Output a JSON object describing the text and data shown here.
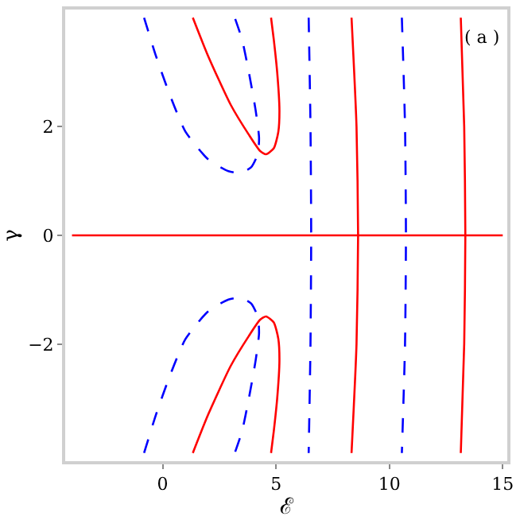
{
  "chart_data": {
    "type": "line",
    "xlabel": "ℰ",
    "ylabel": "γ",
    "annotations": [
      "( a )"
    ],
    "xlim": [
      -4.3,
      15.2
    ],
    "ylim": [
      -4.15,
      4.15
    ],
    "xticks": [
      0,
      5,
      10,
      15
    ],
    "yticks": [
      -2,
      0,
      2
    ],
    "marker": "none",
    "series": [
      {
        "color": "#0000ff",
        "line_style": "dashed",
        "x": [
          -0.82,
          -0.3,
          0.3,
          1.0,
          2.0,
          2.9,
          3.45,
          3.9,
          4.2,
          4.25,
          4.1,
          3.8,
          3.5,
          3.18
        ],
        "values": [
          4.0,
          3.3,
          2.6,
          1.91,
          1.4,
          1.18,
          1.15,
          1.25,
          1.5,
          1.8,
          2.3,
          3.0,
          3.6,
          4.0
        ]
      },
      {
        "color": "#0000ff",
        "line_style": "dashed",
        "x": [
          -0.82,
          -0.3,
          0.3,
          1.0,
          2.0,
          2.9,
          3.45,
          3.9,
          4.2,
          4.25,
          4.1,
          3.8,
          3.5,
          3.18
        ],
        "values": [
          -4.0,
          -3.3,
          -2.6,
          -1.91,
          -1.4,
          -1.18,
          -1.15,
          -1.25,
          -1.5,
          -1.8,
          -2.3,
          -3.0,
          -3.6,
          -4.0
        ]
      },
      {
        "color": "#ff0000",
        "line_style": "solid",
        "x": [
          1.33,
          2.0,
          3.0,
          3.8,
          4.3,
          4.56,
          4.9,
          5.1,
          5.15,
          5.05,
          4.9,
          4.78
        ],
        "values": [
          4.0,
          3.3,
          2.4,
          1.85,
          1.55,
          1.49,
          1.6,
          1.9,
          2.3,
          3.0,
          3.6,
          4.0
        ]
      },
      {
        "color": "#ff0000",
        "line_style": "solid",
        "x": [
          1.33,
          2.0,
          3.0,
          3.8,
          4.3,
          4.56,
          4.9,
          5.1,
          5.15,
          5.05,
          4.9,
          4.78
        ],
        "values": [
          -4.0,
          -3.3,
          -2.4,
          -1.85,
          -1.55,
          -1.49,
          -1.6,
          -1.9,
          -2.3,
          -3.0,
          -3.6,
          -4.0
        ]
      },
      {
        "color": "#0000ff",
        "line_style": "dashed",
        "x": [
          6.44,
          6.52,
          6.55,
          6.52,
          6.44
        ],
        "values": [
          4.0,
          2.0,
          0.0,
          -2.0,
          -4.0
        ]
      },
      {
        "color": "#ff0000",
        "line_style": "solid",
        "x": [
          8.33,
          8.55,
          8.62,
          8.55,
          8.33
        ],
        "values": [
          4.0,
          2.0,
          0.0,
          -2.0,
          -4.0
        ]
      },
      {
        "color": "#0000ff",
        "line_style": "dashed",
        "x": [
          10.55,
          10.69,
          10.73,
          10.69,
          10.55
        ],
        "values": [
          4.0,
          2.0,
          0.0,
          -2.0,
          -4.0
        ]
      },
      {
        "color": "#ff0000",
        "line_style": "solid",
        "x": [
          13.15,
          13.3,
          13.35,
          13.3,
          13.15
        ],
        "values": [
          4.0,
          2.0,
          0.0,
          -2.0,
          -4.0
        ]
      },
      {
        "color": "#ff0000",
        "line_style": "solid",
        "x": [
          -4.0,
          15.0
        ],
        "values": [
          0.0,
          0.0
        ]
      }
    ]
  }
}
